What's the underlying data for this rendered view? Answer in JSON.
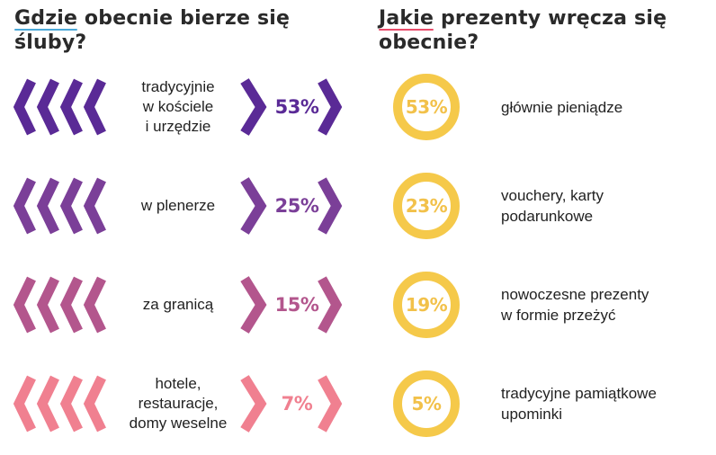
{
  "left_heading": {
    "underlined": "Gdzie",
    "rest": " obecnie bierze się śluby?"
  },
  "right_heading": {
    "underlined": "Jakie",
    "rest": " prezenty wręcza się obecnie?"
  },
  "venues": [
    {
      "label": "tradycyjnie\nw kościele\ni urzędzie",
      "percent": "53%",
      "color": "#5a2a96"
    },
    {
      "label": "w plenerze",
      "percent": "25%",
      "color": "#7b3f98"
    },
    {
      "label": "za granicą",
      "percent": "15%",
      "color": "#b3568d"
    },
    {
      "label": "hotele,\nrestauracje,\ndomy weselne",
      "percent": "7%",
      "color": "#f08090"
    }
  ],
  "gifts": [
    {
      "percent": "53%",
      "label": "głównie pieniądze"
    },
    {
      "percent": "23%",
      "label": "vouchery, karty\npodarunkowe"
    },
    {
      "percent": "19%",
      "label": "nowoczesne prezenty\nw formie przeżyć"
    },
    {
      "percent": "5%",
      "label": "tradycyjne pamiątkowe\nupominki"
    }
  ],
  "ring_color": "#f5c94a",
  "icons": {
    "left_arrows": "chevron-left-icon",
    "right_arrow": "chevron-right-icon"
  }
}
